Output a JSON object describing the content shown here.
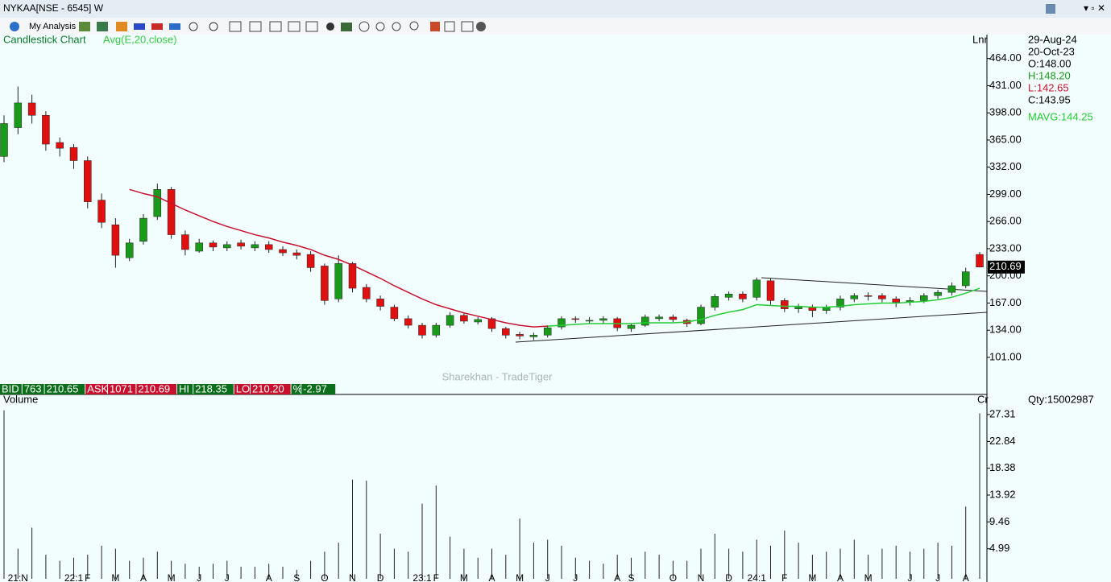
{
  "window": {
    "title": "NYKAA[NSE - 6545] W",
    "toolbar_label": "My Analysis"
  },
  "info": {
    "dates": [
      "29-Aug-24",
      "20-Oct-23"
    ],
    "ohlc": [
      "O:148.00",
      "H:148.20",
      "L:142.65",
      "C:143.95"
    ],
    "mavg": "MAVG:144.25",
    "qty": "Qty:15002987",
    "watermark": "Sharekhan - TradeTiger"
  },
  "info_bar": [
    {
      "text": "BID",
      "color": "#0b6e1a"
    },
    {
      "text": "763",
      "color": "#0b6e1a"
    },
    {
      "text": "210.65",
      "color": "#0b6e1a"
    },
    {
      "text": "ASK",
      "color": "#c8102e"
    },
    {
      "text": "1071",
      "color": "#c8102e"
    },
    {
      "text": "210.69",
      "color": "#c8102e"
    },
    {
      "text": "HI",
      "color": "#0b6e1a"
    },
    {
      "text": "218.35",
      "color": "#0b6e1a"
    },
    {
      "text": "LO",
      "color": "#c8102e"
    },
    {
      "text": "210.20",
      "color": "#c8102e"
    },
    {
      "text": "%",
      "color": "#0b6e1a"
    },
    {
      "text": "-2.97",
      "color": "#0b6e1a"
    }
  ],
  "chart_data": [
    {
      "type": "candlestick",
      "title": "Candlestick Chart",
      "scale_label": "Lnr",
      "up_color": "#1a9a1a",
      "down_color": "#e01010",
      "last_price": 210.69,
      "categories": [
        null,
        "21:N",
        null,
        null,
        null,
        "22:1",
        "F",
        null,
        "M",
        null,
        "A",
        null,
        "M",
        null,
        "J",
        null,
        "J",
        null,
        null,
        "A",
        null,
        "S",
        null,
        "O",
        null,
        "N",
        null,
        "D",
        null,
        null,
        "23:1",
        "F",
        null,
        "M",
        null,
        "A",
        null,
        "M",
        null,
        "J",
        null,
        "J",
        null,
        null,
        "A",
        "S",
        null,
        null,
        "O",
        null,
        "N",
        null,
        "D",
        null,
        "24:1",
        null,
        "F",
        null,
        "M",
        null,
        "A",
        null,
        "M",
        null,
        null,
        "J",
        null,
        "J",
        null,
        "A",
        null
      ],
      "open": [
        345,
        380,
        410,
        395,
        362,
        356,
        340,
        292,
        262,
        222,
        242,
        272,
        305,
        250,
        230,
        240,
        234,
        240,
        234,
        238,
        232,
        228,
        226,
        212,
        172,
        215,
        186,
        172,
        162,
        148,
        140,
        128,
        140,
        152,
        144,
        148,
        136,
        129,
        126,
        128,
        138,
        148,
        146,
        146,
        148,
        136,
        140,
        148,
        150,
        146,
        142,
        162,
        174,
        178,
        174,
        194,
        170,
        160,
        162,
        158,
        162,
        172,
        176,
        176,
        172,
        168,
        170,
        176,
        180,
        188,
        226
      ],
      "high": [
        395,
        430,
        420,
        400,
        368,
        360,
        345,
        300,
        270,
        245,
        275,
        312,
        308,
        255,
        245,
        243,
        242,
        244,
        242,
        242,
        236,
        232,
        230,
        215,
        225,
        217,
        190,
        176,
        165,
        152,
        143,
        143,
        156,
        155,
        150,
        150,
        138,
        132,
        131,
        140,
        151,
        151,
        150,
        151,
        150,
        142,
        153,
        153,
        153,
        148,
        165,
        178,
        181,
        181,
        198,
        197,
        173,
        166,
        165,
        165,
        176,
        179,
        180,
        179,
        175,
        174,
        179,
        183,
        192,
        210,
        229
      ],
      "low": [
        338,
        372,
        385,
        352,
        345,
        330,
        282,
        258,
        210,
        218,
        238,
        268,
        245,
        225,
        228,
        230,
        230,
        232,
        230,
        228,
        224,
        220,
        205,
        165,
        168,
        180,
        168,
        158,
        145,
        136,
        124,
        125,
        137,
        142,
        141,
        132,
        124,
        123,
        122,
        125,
        135,
        143,
        142,
        142,
        133,
        132,
        138,
        145,
        144,
        138,
        140,
        158,
        170,
        168,
        170,
        165,
        156,
        155,
        150,
        154,
        158,
        168,
        170,
        168,
        162,
        164,
        167,
        172,
        176,
        185,
        210.2
      ],
      "close": [
        385,
        410,
        395,
        360,
        355,
        340,
        290,
        265,
        225,
        240,
        270,
        305,
        250,
        232,
        240,
        235,
        238,
        236,
        238,
        232,
        228,
        225,
        210,
        170,
        215,
        185,
        172,
        163,
        148,
        140,
        128,
        140,
        152,
        145,
        147,
        136,
        128,
        127,
        128,
        137,
        148,
        147,
        146,
        148,
        137,
        140,
        150,
        150,
        147,
        142,
        162,
        175,
        178,
        172,
        195,
        170,
        160,
        162,
        158,
        162,
        172,
        176,
        175,
        172,
        168,
        170,
        176,
        180,
        188,
        205,
        210.69
      ],
      "ma": {
        "label": "Avg(E,20,close)",
        "series": [
          {
            "color": "#c8102e",
            "values": [
              null,
              null,
              null,
              null,
              null,
              null,
              null,
              null,
              null,
              305,
              300,
              296,
              288,
              280,
              273,
              266,
              260,
              255,
              250,
              246,
              241,
              237,
              232,
              225,
              220,
              213,
              205,
              197,
              188,
              180,
              172,
              165,
              160,
              155,
              151,
              147,
              143,
              140,
              138,
              139,
              null,
              null,
              null,
              null,
              null,
              null,
              null,
              null,
              null,
              null,
              null,
              null,
              null,
              null,
              null,
              null,
              null,
              null,
              null,
              null,
              null,
              null,
              null,
              null,
              null,
              null,
              null,
              null,
              null,
              null,
              null
            ]
          },
          {
            "color": "#22cc33",
            "values": [
              null,
              null,
              null,
              null,
              null,
              null,
              null,
              null,
              null,
              null,
              null,
              null,
              null,
              null,
              null,
              null,
              null,
              null,
              null,
              null,
              null,
              null,
              null,
              null,
              null,
              null,
              null,
              null,
              null,
              null,
              null,
              null,
              null,
              null,
              null,
              null,
              null,
              null,
              null,
              139,
              140,
              141,
              142,
              142,
              142,
              142,
              143,
              143,
              143,
              144,
              147,
              152,
              156,
              159,
              165,
              164,
              163,
              163,
              162,
              162,
              163,
              165,
              166,
              167,
              167,
              168,
              169,
              171,
              174,
              179,
              185
            ]
          }
        ]
      },
      "ylim": [
        56,
        493
      ],
      "yticks": [
        {
          "value": 101,
          "label": "101.00"
        },
        {
          "value": 134,
          "label": "134.00"
        },
        {
          "value": 167,
          "label": "167.00"
        },
        {
          "value": 200,
          "label": "200.00"
        },
        {
          "value": 233,
          "label": "233.00"
        },
        {
          "value": 266,
          "label": "266.00"
        },
        {
          "value": 299,
          "label": "299.00"
        },
        {
          "value": 332,
          "label": "332.00"
        },
        {
          "value": 365,
          "label": "365.00"
        },
        {
          "value": 398,
          "label": "398.00"
        },
        {
          "value": 431,
          "label": "431.00"
        },
        {
          "value": 464,
          "label": "464.00"
        }
      ]
    },
    {
      "type": "bar",
      "title": "Volume",
      "scale_label": "Cr",
      "color": "#222222",
      "values": [
        28,
        5,
        8.5,
        4,
        3,
        3.5,
        4,
        5.5,
        5,
        3,
        3.5,
        4.5,
        3,
        2.5,
        2,
        2.5,
        3,
        2,
        2,
        2.5,
        2,
        1.5,
        3,
        4.5,
        6,
        16.5,
        16.3,
        7.5,
        5,
        4.5,
        12.5,
        15.5,
        7,
        5,
        3.5,
        5,
        4,
        10,
        6,
        6.5,
        5.5,
        3.5,
        3,
        2.5,
        4,
        3.5,
        4.5,
        4,
        3,
        3,
        5,
        7.5,
        5,
        4.5,
        6.5,
        5.5,
        8,
        6,
        4,
        4.5,
        5,
        6.5,
        4,
        5,
        5.5,
        4.5,
        5,
        6,
        5.5,
        12,
        27.5
      ],
      "ylim": [
        0,
        30.65
      ],
      "yticks": [
        4.99,
        9.46,
        13.92,
        18.38,
        22.84,
        27.31
      ]
    }
  ]
}
